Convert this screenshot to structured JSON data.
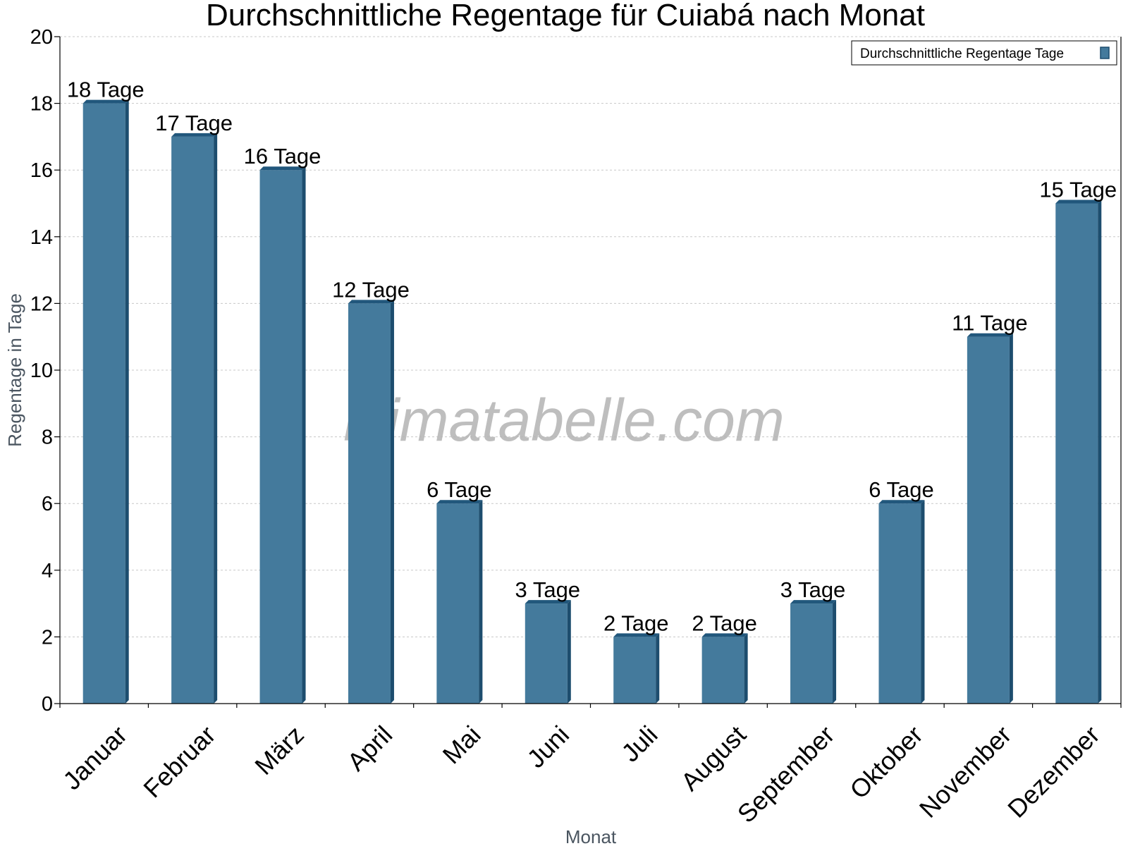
{
  "colors": {
    "bar_front": "#447a9c",
    "bar_side": "#1d4d6e",
    "bar_top": "#21577c"
  },
  "watermark": "klimatabelle.com",
  "chart_data": {
    "type": "bar",
    "title": "Durchschnittliche Regentage für Cuiabá nach Monat",
    "xlabel": "Monat",
    "ylabel": "Regentage in Tage",
    "ylim": [
      0,
      20
    ],
    "yticks": [
      0,
      2,
      4,
      6,
      8,
      10,
      12,
      14,
      16,
      18,
      20
    ],
    "grid": true,
    "legend": {
      "position": "top-right",
      "entries": [
        "Durchschnittliche Regentage Tage"
      ]
    },
    "categories": [
      "Januar",
      "Februar",
      "März",
      "April",
      "Mai",
      "Juni",
      "Juli",
      "August",
      "September",
      "Oktober",
      "November",
      "Dezember"
    ],
    "series": [
      {
        "name": "Durchschnittliche Regentage Tage",
        "values": [
          18,
          17,
          16,
          12,
          6,
          3,
          2,
          2,
          3,
          6,
          11,
          15
        ],
        "labels": [
          "18 Tage",
          "17 Tage",
          "16 Tage",
          "12 Tage",
          "6 Tage",
          "3 Tage",
          "2 Tage",
          "2 Tage",
          "3 Tage",
          "6 Tage",
          "11 Tage",
          "15 Tage"
        ]
      }
    ]
  }
}
